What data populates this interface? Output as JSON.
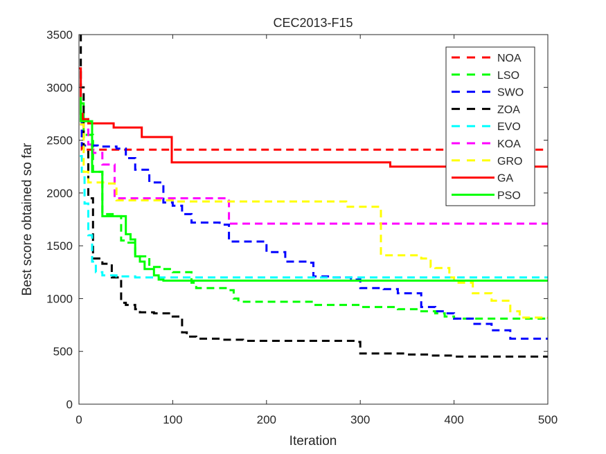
{
  "chart_data": {
    "type": "line",
    "title": "CEC2013-F15",
    "xlabel": "Iteration",
    "ylabel": "Best score obtained so far",
    "xlim": [
      0,
      500
    ],
    "ylim": [
      0,
      3500
    ],
    "xticks": [
      0,
      100,
      200,
      300,
      400,
      500
    ],
    "yticks": [
      0,
      500,
      1000,
      1500,
      2000,
      2500,
      3000,
      3500
    ],
    "grid": false,
    "legend_position": "top-right",
    "series": [
      {
        "name": "NOA",
        "color": "#FF0000",
        "style": "dashed",
        "x": [
          1,
          3,
          500
        ],
        "y": [
          2700,
          2410,
          2410
        ]
      },
      {
        "name": "LSO",
        "color": "#00FF00",
        "style": "dashed",
        "x": [
          1,
          5,
          15,
          25,
          40,
          45,
          50,
          60,
          75,
          90,
          100,
          120,
          125,
          160,
          165,
          170,
          250,
          300,
          340,
          360,
          380,
          390,
          400,
          500
        ],
        "y": [
          2850,
          2550,
          2200,
          1800,
          1780,
          1550,
          1530,
          1400,
          1300,
          1280,
          1250,
          1150,
          1100,
          1080,
          1000,
          970,
          940,
          920,
          900,
          880,
          860,
          830,
          810,
          810
        ]
      },
      {
        "name": "SWO",
        "color": "#0000FF",
        "style": "dashed",
        "x": [
          1,
          3,
          20,
          40,
          50,
          60,
          75,
          90,
          100,
          110,
          120,
          150,
          160,
          185,
          200,
          220,
          245,
          250,
          270,
          290,
          300,
          325,
          340,
          360,
          365,
          380,
          390,
          400,
          420,
          440,
          460,
          500
        ],
        "y": [
          2700,
          2450,
          2440,
          2420,
          2330,
          2220,
          2100,
          1910,
          1880,
          1800,
          1720,
          1700,
          1540,
          1540,
          1440,
          1350,
          1340,
          1210,
          1200,
          1180,
          1100,
          1090,
          1050,
          1050,
          920,
          880,
          860,
          810,
          760,
          700,
          620,
          610
        ]
      },
      {
        "name": "ZOA",
        "color": "#000000",
        "style": "dashed",
        "x": [
          1,
          2,
          5,
          10,
          15,
          25,
          35,
          45,
          50,
          60,
          65,
          80,
          100,
          110,
          115,
          125,
          150,
          175,
          250,
          295,
          300,
          350,
          375,
          400,
          500
        ],
        "y": [
          3500,
          3000,
          2400,
          1950,
          1380,
          1330,
          1200,
          960,
          940,
          900,
          870,
          860,
          830,
          680,
          640,
          620,
          610,
          600,
          600,
          590,
          480,
          470,
          460,
          450,
          440
        ]
      },
      {
        "name": "EVO",
        "color": "#00FFFF",
        "style": "dashed",
        "x": [
          1,
          3,
          6,
          10,
          14,
          18,
          25,
          40,
          60,
          100,
          150,
          500
        ],
        "y": [
          2350,
          2200,
          1900,
          1600,
          1350,
          1250,
          1220,
          1210,
          1200,
          1200,
          1200,
          1200
        ]
      },
      {
        "name": "KOA",
        "color": "#FF00FF",
        "style": "dashed",
        "x": [
          1,
          5,
          10,
          15,
          25,
          35,
          38,
          100,
          158,
          160,
          500
        ],
        "y": [
          2650,
          2600,
          2460,
          2380,
          2270,
          2270,
          1950,
          1950,
          1950,
          1710,
          1710
        ]
      },
      {
        "name": "GRO",
        "color": "#FFFF00",
        "style": "dashed",
        "x": [
          1,
          5,
          10,
          30,
          40,
          100,
          200,
          280,
          285,
          320,
          322,
          350,
          365,
          375,
          380,
          395,
          400,
          420,
          440,
          460,
          470,
          500
        ],
        "y": [
          2650,
          2200,
          2100,
          2090,
          1930,
          1920,
          1920,
          1920,
          1870,
          1870,
          1410,
          1410,
          1380,
          1300,
          1290,
          1200,
          1150,
          1050,
          980,
          880,
          820,
          810
        ]
      },
      {
        "name": "GA",
        "color": "#FF0000",
        "style": "solid",
        "x": [
          0,
          2,
          4,
          10,
          35,
          37,
          65,
          67,
          97,
          99,
          330,
          332,
          500
        ],
        "y": [
          3180,
          2750,
          2700,
          2660,
          2660,
          2620,
          2620,
          2530,
          2530,
          2290,
          2290,
          2250,
          2250
        ]
      },
      {
        "name": "PSO",
        "color": "#00FF00",
        "style": "solid",
        "x": [
          1,
          2,
          12,
          14,
          20,
          25,
          45,
          50,
          55,
          60,
          65,
          70,
          80,
          85,
          90,
          100,
          500
        ],
        "y": [
          2900,
          2680,
          2680,
          2200,
          2200,
          1780,
          1780,
          1610,
          1560,
          1400,
          1350,
          1280,
          1220,
          1180,
          1170,
          1170,
          1170
        ]
      }
    ]
  }
}
